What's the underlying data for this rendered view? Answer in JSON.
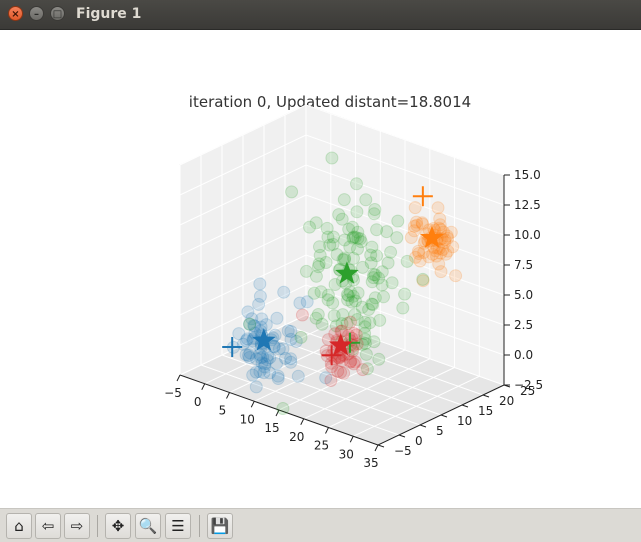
{
  "window": {
    "title": "Figure 1"
  },
  "window_controls": {
    "close": "×",
    "minimize": "–",
    "maximize": "□"
  },
  "toolbar": {
    "buttons": [
      {
        "name": "home",
        "glyph": "⌂"
      },
      {
        "name": "back",
        "glyph": "⇦"
      },
      {
        "name": "forward",
        "glyph": "⇨"
      },
      {
        "name": "pan",
        "glyph": "✥"
      },
      {
        "name": "zoom",
        "glyph": "🔍"
      },
      {
        "name": "configure-subplots",
        "glyph": "☰"
      },
      {
        "name": "save",
        "glyph": "💾"
      }
    ]
  },
  "chart_data": {
    "type": "scatter",
    "projection": "3d",
    "title": "iteration 0, Updated distant=18.8014",
    "x_ticks": [
      "−5",
      "0",
      "5",
      "10",
      "15",
      "20",
      "25",
      "30",
      "35"
    ],
    "y_ticks": [
      "−5",
      "0",
      "5",
      "10",
      "15",
      "20",
      "25"
    ],
    "z_ticks": [
      "−2.5",
      "0.0",
      "2.5",
      "5.0",
      "7.5",
      "10.0",
      "12.5",
      "15.0"
    ],
    "xlim": [
      -5,
      35
    ],
    "ylim": [
      -5,
      25
    ],
    "zlim": [
      -2.5,
      15
    ],
    "grid": true,
    "clusters": [
      {
        "color": "#1f77b4",
        "point_center": [
          6,
          2,
          0.5
        ],
        "spread": [
          3,
          2.5,
          1.6
        ],
        "points": 70,
        "centroid_star": [
          6,
          2,
          0.8
        ],
        "previous_center_plus": [
          3,
          -2,
          0.5
        ]
      },
      {
        "color": "#ff7f0e",
        "point_center": [
          23,
          22,
          8.5
        ],
        "spread": [
          1.8,
          2,
          1.4
        ],
        "points": 55,
        "centroid_star": [
          23,
          22,
          8.5
        ],
        "previous_center_plus": [
          22,
          21,
          12
        ]
      },
      {
        "color": "#2ca02c",
        "point_center": [
          16,
          12,
          6
        ],
        "spread": [
          3.5,
          4,
          3.4
        ],
        "points": 120,
        "centroid_star": [
          16,
          10,
          6.5
        ],
        "previous_center_plus": [
          20,
          6,
          2
        ]
      },
      {
        "color": "#d62728",
        "point_center": [
          19,
          5,
          1.5
        ],
        "spread": [
          1.8,
          1.6,
          1.2
        ],
        "points": 40,
        "centroid_star": [
          19,
          5,
          1.8
        ],
        "previous_center_plus": [
          18,
          4,
          1
        ]
      }
    ]
  }
}
